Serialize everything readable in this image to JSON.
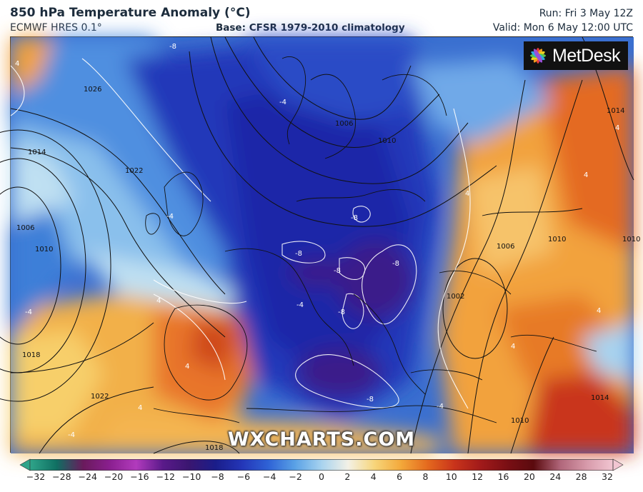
{
  "header": {
    "title": "850 hPa Temperature Anomaly (°C)",
    "model": "ECMWF HRES 0.1°",
    "base": "Base: CFSR 1979-2010 climatology",
    "run": "Run: Fri 3 May 12Z",
    "valid": "Valid: Mon 6 May 12:00 UTC"
  },
  "branding": {
    "logo_text": "MetDesk",
    "watermark": "WXCHARTS.COM",
    "logo_icon": "metdesk-star-icon"
  },
  "isobar_labels": [
    "1026",
    "1014",
    "1022",
    "1006",
    "1010",
    "1018",
    "1022",
    "1018",
    "1006",
    "1010",
    "1014",
    "1010",
    "1006",
    "1010",
    "1002",
    "1010",
    "1014"
  ],
  "anomaly_labels": [
    "-8",
    "-4",
    "-4",
    "-4",
    "-8",
    "-8",
    "-8",
    "-8",
    "-8",
    "-8",
    "-4",
    "4",
    "4",
    "4",
    "4",
    "4",
    "4",
    "4",
    "4",
    "4",
    "-4",
    "-4"
  ],
  "colorbar": {
    "ticks": [
      "−32",
      "−28",
      "−24",
      "−20",
      "−16",
      "−12",
      "−10",
      "−8",
      "−6",
      "−4",
      "−2",
      "0",
      "2",
      "4",
      "6",
      "8",
      "10",
      "12",
      "16",
      "20",
      "24",
      "28",
      "32"
    ],
    "colors": [
      "#2fa58a",
      "#0f6f62",
      "#6a1a5c",
      "#8a1f8f",
      "#b23bbd",
      "#5a1a8a",
      "#3a1670",
      "#1a1d8a",
      "#2436b8",
      "#2f63d6",
      "#5aa2e6",
      "#a8d3ef",
      "#f3f1e6",
      "#f7d57a",
      "#f3a83a",
      "#e4691e",
      "#c9341b",
      "#a11a1a",
      "#7a0f14",
      "#5a0a0e",
      "#b0667a",
      "#d79aaa",
      "#f2c6d2"
    ]
  }
}
